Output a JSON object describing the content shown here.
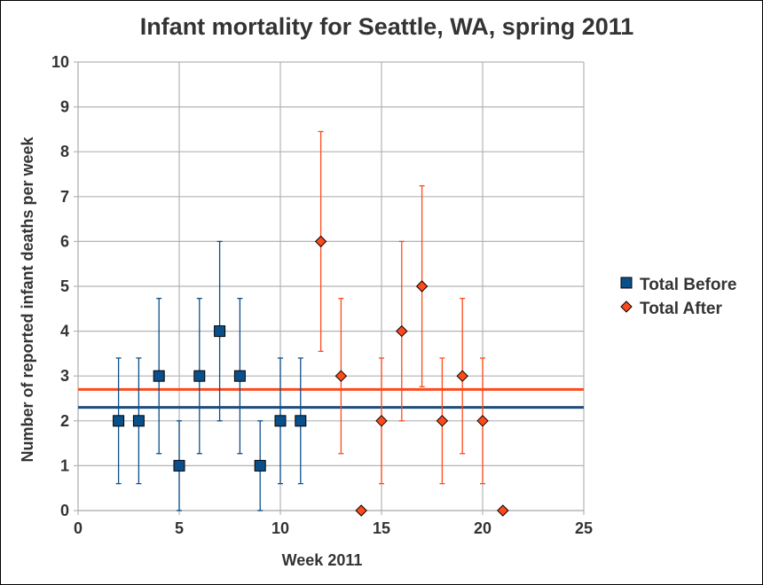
{
  "chart_data": {
    "type": "scatter",
    "title": "Infant mortality for Seattle, WA, spring 2011",
    "xlabel": "Week 2011",
    "ylabel": "Number of reported infant deaths per week",
    "xlim": [
      0,
      25
    ],
    "ylim": [
      0,
      10
    ],
    "xticks": [
      0,
      5,
      10,
      15,
      20,
      25
    ],
    "yticks": [
      0,
      1,
      2,
      3,
      4,
      5,
      6,
      7,
      8,
      9,
      10
    ],
    "grid": true,
    "legend_position": "right",
    "series": [
      {
        "name": "Total Before",
        "marker": "square",
        "color": "#0b4f8a",
        "line_color": "#1f4e79",
        "mean_line": 2.3,
        "points": [
          {
            "x": 2,
            "y": 2,
            "err_low": 0.6,
            "err_high": 3.4
          },
          {
            "x": 3,
            "y": 2,
            "err_low": 0.6,
            "err_high": 3.4
          },
          {
            "x": 4,
            "y": 3,
            "err_low": 1.27,
            "err_high": 4.73
          },
          {
            "x": 5,
            "y": 1,
            "err_low": 0,
            "err_high": 2
          },
          {
            "x": 6,
            "y": 3,
            "err_low": 1.27,
            "err_high": 4.73
          },
          {
            "x": 7,
            "y": 4,
            "err_low": 2,
            "err_high": 6
          },
          {
            "x": 8,
            "y": 3,
            "err_low": 1.27,
            "err_high": 4.73
          },
          {
            "x": 9,
            "y": 1,
            "err_low": 0,
            "err_high": 2
          },
          {
            "x": 10,
            "y": 2,
            "err_low": 0.6,
            "err_high": 3.4
          },
          {
            "x": 11,
            "y": 2,
            "err_low": 0.6,
            "err_high": 3.4
          }
        ]
      },
      {
        "name": "Total After",
        "marker": "diamond",
        "color": "#ff4a1a",
        "line_color": "#ff4a1a",
        "mean_line": 2.7,
        "points": [
          {
            "x": 12,
            "y": 6,
            "err_low": 3.55,
            "err_high": 8.45
          },
          {
            "x": 13,
            "y": 3,
            "err_low": 1.27,
            "err_high": 4.73
          },
          {
            "x": 14,
            "y": 0,
            "err_low": 0,
            "err_high": 0
          },
          {
            "x": 15,
            "y": 2,
            "err_low": 0.6,
            "err_high": 3.4
          },
          {
            "x": 16,
            "y": 4,
            "err_low": 2,
            "err_high": 6
          },
          {
            "x": 17,
            "y": 5,
            "err_low": 2.76,
            "err_high": 7.24
          },
          {
            "x": 18,
            "y": 2,
            "err_low": 0.6,
            "err_high": 3.4
          },
          {
            "x": 19,
            "y": 3,
            "err_low": 1.27,
            "err_high": 4.73
          },
          {
            "x": 20,
            "y": 2,
            "err_low": 0.6,
            "err_high": 3.4
          },
          {
            "x": 21,
            "y": 0,
            "err_low": 0,
            "err_high": 0
          }
        ]
      }
    ]
  }
}
